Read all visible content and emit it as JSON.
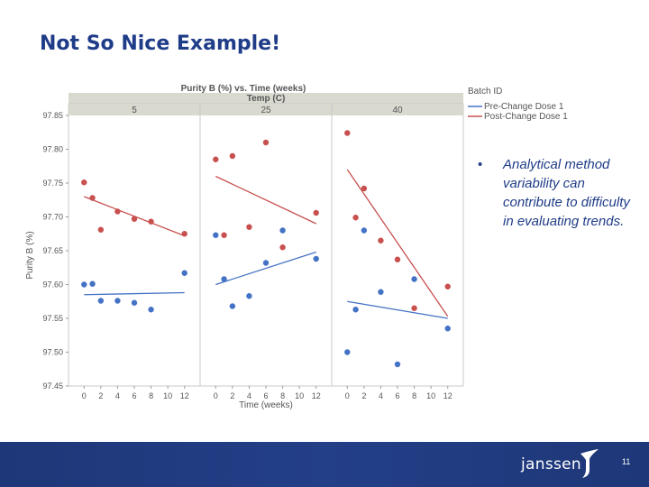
{
  "slide": {
    "title": "Not So Nice Example!",
    "note": "Analytical method variability can contribute to difficulty in evaluating trends.",
    "bullet": "•",
    "brand": "janssen",
    "page_number": "11",
    "brand_mark_icon": "janssen-logo-icon"
  },
  "chart_data": {
    "type": "scatter",
    "title": "Purity B (%) vs. Time (weeks)",
    "panel_group_label": "Temp (C)",
    "xlabel": "Time (weeks)",
    "ylabel": "Purity B (%)",
    "legend_title": "Batch ID",
    "legend_position": "top-right",
    "ylim": [
      97.45,
      97.85
    ],
    "yticks": [
      "97.85",
      "97.80",
      "97.75",
      "97.70",
      "97.65",
      "97.60",
      "97.55",
      "97.50",
      "97.45"
    ],
    "ytick_values": [
      97.85,
      97.8,
      97.75,
      97.7,
      97.65,
      97.6,
      97.55,
      97.5,
      97.45
    ],
    "xlim": [
      -1,
      13
    ],
    "xticks": [
      "0",
      "2",
      "4",
      "6",
      "8",
      "10",
      "12"
    ],
    "xtick_values": [
      0,
      2,
      4,
      6,
      8,
      10,
      12
    ],
    "grid": false,
    "colors": {
      "pre": "#4472c4",
      "post": "#c8504f",
      "header_bg": "#d9d9d0",
      "frame": "#c8c8c8"
    },
    "panels": [
      {
        "label": "5",
        "series": [
          {
            "name": "Pre-Change Dose 1",
            "key": "pre",
            "x": [
              0,
              1,
              2,
              4,
              6,
              8,
              12
            ],
            "y": [
              97.6,
              97.601,
              97.576,
              97.576,
              97.573,
              97.563,
              97.617
            ],
            "fit": [
              [
                0,
                97.585
              ],
              [
                12,
                97.588
              ]
            ]
          },
          {
            "name": "Post-Change Dose 1",
            "key": "post",
            "x": [
              0,
              1,
              2,
              4,
              6,
              8,
              12
            ],
            "y": [
              97.751,
              97.728,
              97.681,
              97.708,
              97.697,
              97.693,
              97.675
            ],
            "fit": [
              [
                0,
                97.73
              ],
              [
                12,
                97.672
              ]
            ]
          }
        ]
      },
      {
        "label": "25",
        "series": [
          {
            "name": "Pre-Change Dose 1",
            "key": "pre",
            "x": [
              0,
              1,
              2,
              4,
              6,
              8,
              12
            ],
            "y": [
              97.673,
              97.608,
              97.568,
              97.583,
              97.632,
              97.68,
              97.638
            ],
            "fit": [
              [
                0,
                97.6
              ],
              [
                12,
                97.648
              ]
            ]
          },
          {
            "name": "Post-Change Dose 1",
            "key": "post",
            "x": [
              0,
              1,
              2,
              4,
              6,
              8,
              12
            ],
            "y": [
              97.785,
              97.673,
              97.79,
              97.685,
              97.81,
              97.655,
              97.706
            ],
            "fit": [
              [
                0,
                97.76
              ],
              [
                12,
                97.69
              ]
            ]
          }
        ]
      },
      {
        "label": "40",
        "series": [
          {
            "name": "Pre-Change Dose 1",
            "key": "pre",
            "x": [
              0,
              1,
              2,
              4,
              6,
              8,
              12
            ],
            "y": [
              97.5,
              97.563,
              97.68,
              97.589,
              97.482,
              97.608,
              97.535
            ],
            "fit": [
              [
                0,
                97.575
              ],
              [
                12,
                97.55
              ]
            ]
          },
          {
            "name": "Post-Change Dose 1",
            "key": "post",
            "x": [
              0,
              1,
              2,
              4,
              6,
              8,
              12
            ],
            "y": [
              97.824,
              97.699,
              97.742,
              97.665,
              97.637,
              97.565,
              97.597
            ],
            "fit": [
              [
                0,
                97.77
              ],
              [
                12,
                97.553
              ]
            ]
          }
        ]
      }
    ]
  }
}
